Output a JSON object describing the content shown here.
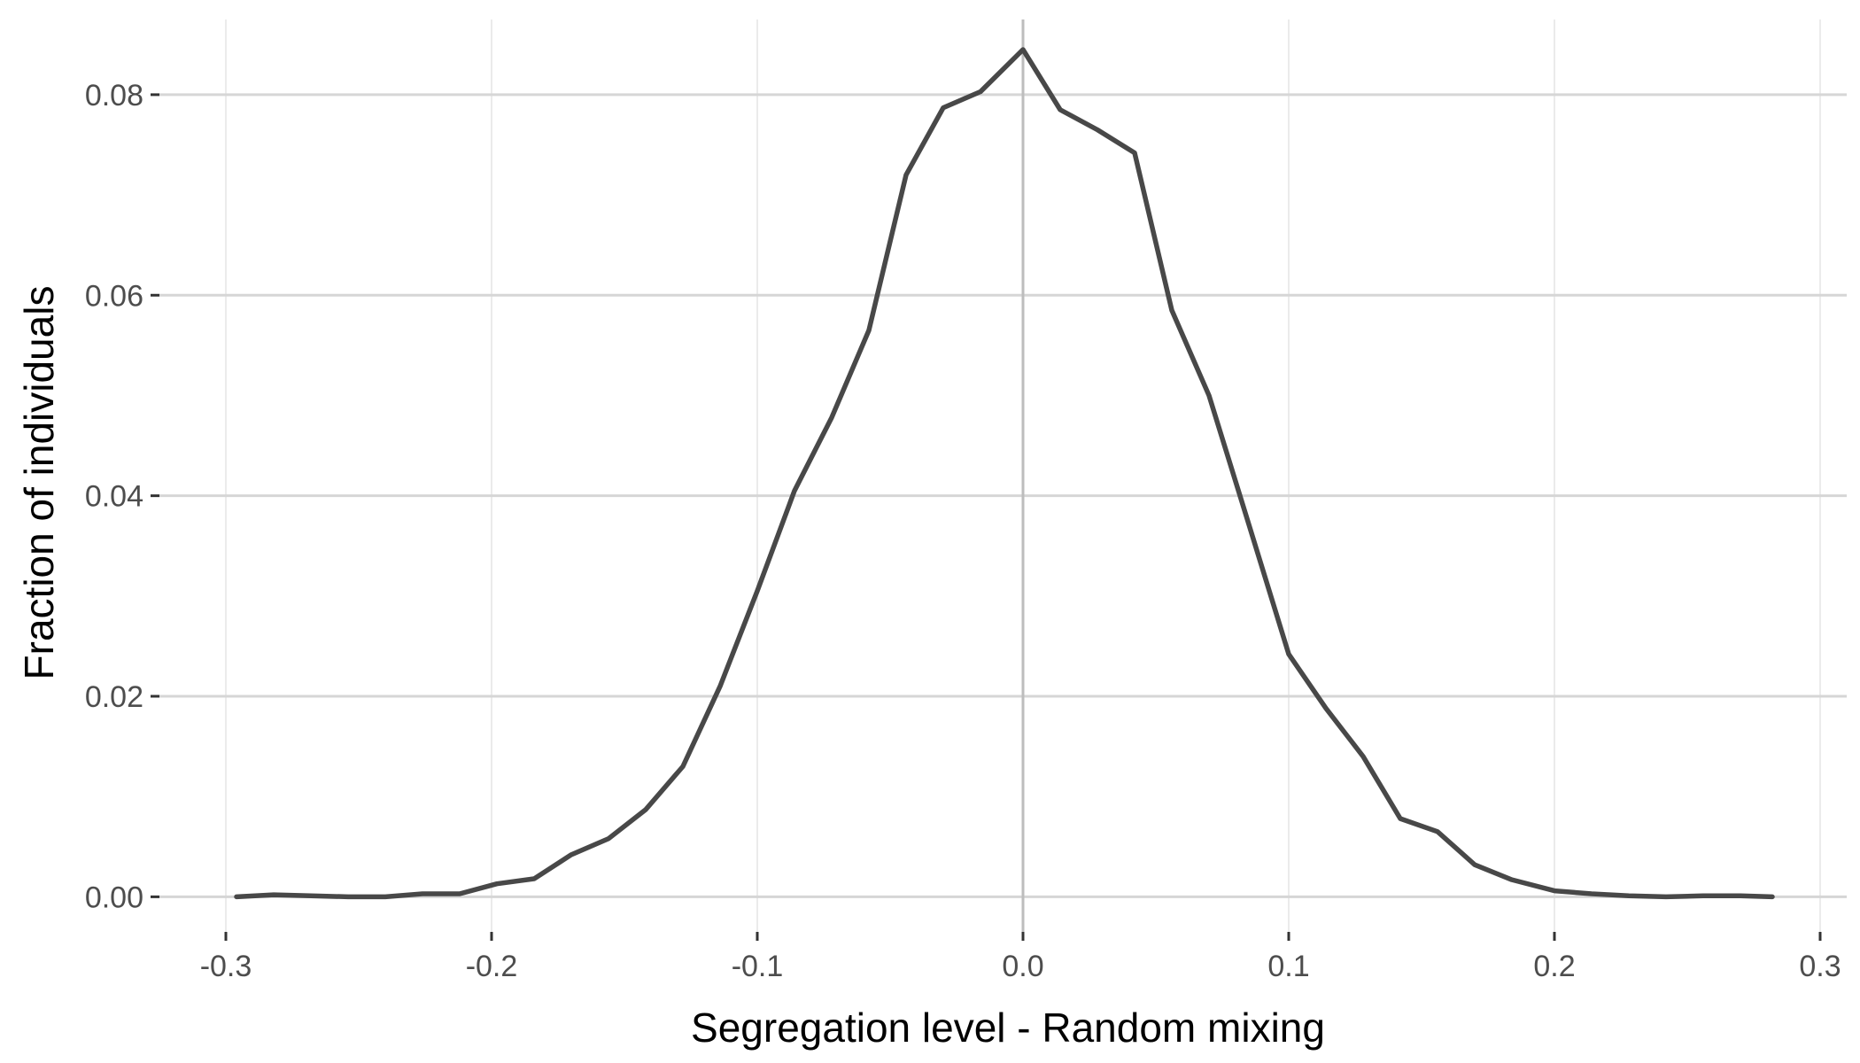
{
  "chart_data": {
    "type": "line",
    "title": "",
    "xlabel": "Segregation level - Random mixing",
    "ylabel": "Fraction of individuals",
    "xlim": [
      -0.325,
      0.31
    ],
    "ylim": [
      -0.0035,
      0.0875
    ],
    "x_ticks": [
      -0.3,
      -0.2,
      -0.1,
      0.0,
      0.1,
      0.2,
      0.3
    ],
    "x_tick_labels": [
      "-0.3",
      "-0.2",
      "-0.1",
      "0.0",
      "0.1",
      "0.2",
      "0.3"
    ],
    "y_ticks": [
      0.0,
      0.02,
      0.04,
      0.06,
      0.08
    ],
    "y_tick_labels": [
      "0.00",
      "0.02",
      "0.04",
      "0.06",
      "0.08"
    ],
    "grid": true,
    "vertical_reference_line_at": 0.0,
    "line_color": "#484848",
    "series": [
      {
        "x": [
          -0.296,
          -0.282,
          -0.268,
          -0.254,
          -0.24,
          -0.226,
          -0.212,
          -0.198,
          -0.184,
          -0.17,
          -0.156,
          -0.142,
          -0.128,
          -0.114,
          -0.1,
          -0.086,
          -0.072,
          -0.058,
          -0.044,
          -0.03,
          -0.016,
          0.0,
          0.014,
          0.028,
          0.042,
          0.056,
          0.07,
          0.084,
          0.1,
          0.114,
          0.128,
          0.142,
          0.156,
          0.17,
          0.184,
          0.2,
          0.214,
          0.228,
          0.242,
          0.256,
          0.27,
          0.282
        ],
        "values": [
          0.0,
          0.0002,
          0.0001,
          0.0,
          0.0,
          0.0003,
          0.0003,
          0.0013,
          0.0018,
          0.0042,
          0.0058,
          0.0087,
          0.013,
          0.021,
          0.0305,
          0.0405,
          0.0478,
          0.0565,
          0.072,
          0.0787,
          0.0803,
          0.0845,
          0.0785,
          0.0765,
          0.0742,
          0.0585,
          0.05,
          0.038,
          0.0242,
          0.0188,
          0.014,
          0.0078,
          0.0065,
          0.0032,
          0.0017,
          0.0006,
          0.0003,
          0.0001,
          0.0,
          0.0001,
          0.0001,
          0.0
        ]
      }
    ]
  }
}
